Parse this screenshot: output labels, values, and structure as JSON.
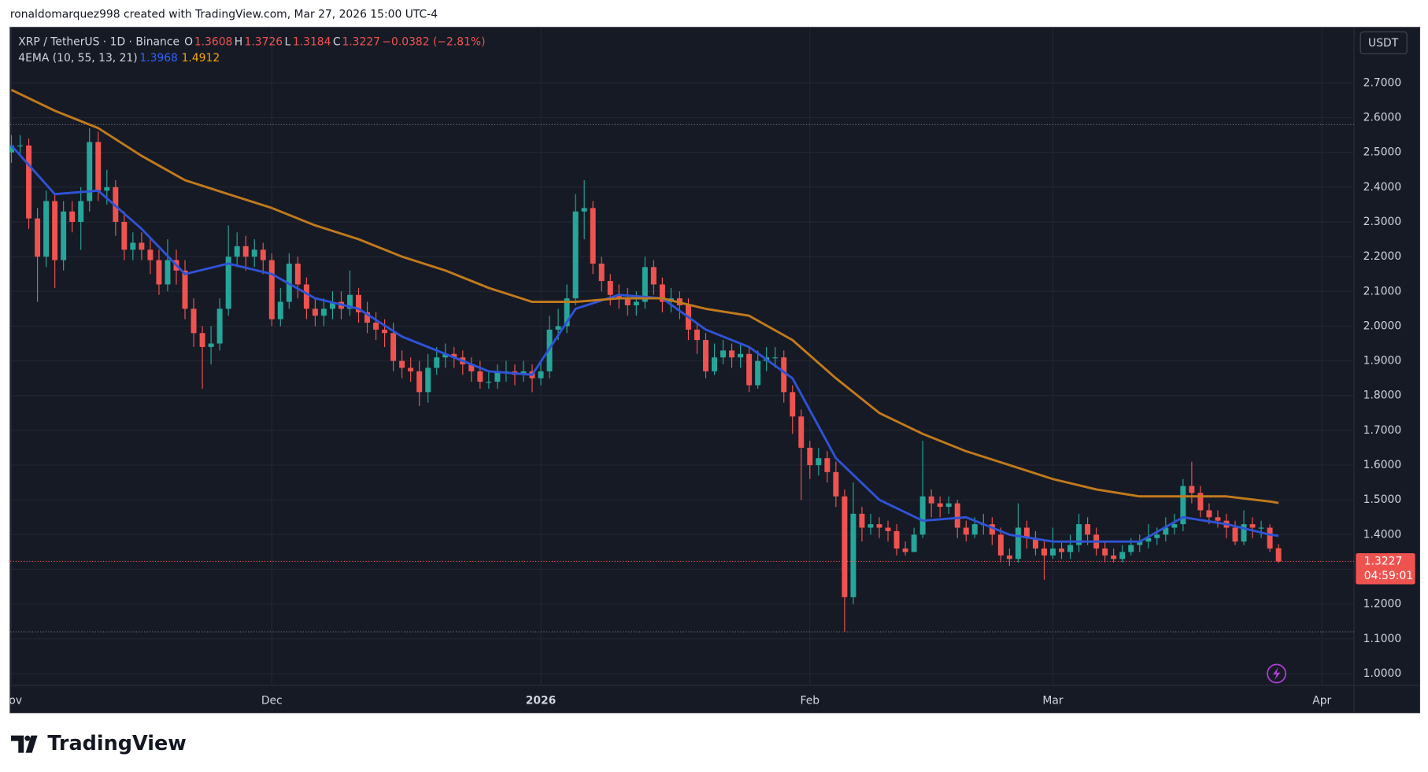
{
  "header": "ronaldomarquez998 created with TradingView.com, Mar 27, 2026 15:00 UTC-4",
  "footer": "TradingView",
  "chart_data": {
    "type": "candlestick",
    "symbol": "XRP / TetherUS · 1D · Binance",
    "ohlc_labels": [
      "O",
      "H",
      "L",
      "C"
    ],
    "change": "−0.0382 (−2.81%)",
    "currency": "USDT",
    "countdown": "04:59:01",
    "up_color": "#26a69a",
    "down_color": "#ef5350",
    "open": [
      2.5,
      2.52,
      2.52,
      2.31,
      2.2,
      2.36,
      2.19,
      2.33,
      2.3,
      2.36,
      2.53,
      2.39,
      2.4,
      2.3,
      2.22,
      2.24,
      2.22,
      2.19,
      2.12,
      2.19,
      2.16,
      2.05,
      1.98,
      1.94,
      1.95,
      2.05,
      2.2,
      2.23,
      2.2,
      2.22,
      2.19,
      2.02,
      2.07,
      2.18,
      2.12,
      2.05,
      2.03,
      2.05,
      2.07,
      2.05,
      2.09,
      2.04,
      2.01,
      1.99,
      1.98,
      1.9,
      1.88,
      1.87,
      1.81,
      1.88,
      1.91,
      1.92,
      1.91,
      1.89,
      1.87,
      1.84,
      1.84,
      1.87,
      1.87,
      1.86,
      1.87,
      1.85,
      1.87,
      1.99,
      2.0,
      2.08,
      2.33,
      2.34,
      2.18,
      2.13,
      2.09,
      2.08,
      2.06,
      2.07,
      2.17,
      2.12,
      2.07,
      2.08,
      2.06,
      1.99,
      1.96,
      1.87,
      1.91,
      1.93,
      1.91,
      1.92,
      1.83,
      1.9,
      1.91,
      1.91,
      1.81,
      1.74,
      1.65,
      1.6,
      1.62,
      1.58,
      1.51,
      1.22,
      1.46,
      1.42,
      1.43,
      1.42,
      1.41,
      1.36,
      1.35,
      1.4,
      1.51,
      1.49,
      1.48,
      1.49,
      1.42,
      1.4,
      1.43,
      1.43,
      1.4,
      1.34,
      1.33,
      1.42,
      1.39,
      1.36,
      1.34,
      1.36,
      1.35,
      1.37,
      1.43,
      1.4,
      1.36,
      1.34,
      1.33,
      1.35,
      1.37,
      1.38,
      1.39,
      1.4,
      1.42,
      1.43,
      1.54,
      1.52,
      1.47,
      1.45,
      1.44,
      1.42,
      1.38,
      1.43,
      1.42,
      1.42,
      1.3608
    ],
    "high": [
      2.55,
      2.55,
      2.54,
      2.34,
      2.39,
      2.38,
      2.36,
      2.36,
      2.4,
      2.57,
      2.56,
      2.45,
      2.42,
      2.33,
      2.27,
      2.27,
      2.25,
      2.22,
      2.25,
      2.22,
      2.19,
      2.08,
      2.0,
      2.0,
      2.08,
      2.29,
      2.27,
      2.26,
      2.25,
      2.24,
      2.21,
      2.11,
      2.21,
      2.2,
      2.14,
      2.08,
      2.08,
      2.1,
      2.1,
      2.16,
      2.11,
      2.07,
      2.04,
      2.02,
      2.01,
      1.93,
      1.91,
      1.9,
      1.92,
      1.94,
      1.95,
      1.94,
      1.93,
      1.91,
      1.9,
      1.87,
      1.89,
      1.9,
      1.89,
      1.9,
      1.89,
      1.9,
      2.03,
      2.05,
      2.12,
      2.38,
      2.42,
      2.36,
      2.2,
      2.15,
      2.12,
      2.11,
      2.1,
      2.2,
      2.19,
      2.14,
      2.11,
      2.1,
      2.08,
      2.01,
      1.98,
      1.95,
      1.96,
      1.95,
      1.95,
      1.94,
      1.93,
      1.94,
      1.94,
      1.93,
      1.83,
      1.76,
      1.67,
      1.65,
      1.64,
      1.61,
      1.53,
      1.55,
      1.48,
      1.46,
      1.45,
      1.44,
      1.43,
      1.38,
      1.42,
      1.67,
      1.53,
      1.51,
      1.51,
      1.5,
      1.44,
      1.45,
      1.46,
      1.45,
      1.42,
      1.36,
      1.49,
      1.44,
      1.41,
      1.38,
      1.42,
      1.38,
      1.4,
      1.46,
      1.45,
      1.42,
      1.38,
      1.36,
      1.37,
      1.39,
      1.4,
      1.43,
      1.42,
      1.45,
      1.46,
      1.56,
      1.61,
      1.54,
      1.49,
      1.47,
      1.46,
      1.44,
      1.47,
      1.45,
      1.44,
      1.43,
      1.3726
    ],
    "low": [
      2.47,
      2.49,
      2.28,
      2.07,
      2.17,
      2.11,
      2.16,
      2.27,
      2.22,
      2.33,
      2.36,
      2.35,
      2.26,
      2.19,
      2.19,
      2.19,
      2.15,
      2.09,
      2.1,
      2.12,
      2.02,
      1.94,
      1.82,
      1.89,
      1.93,
      2.03,
      2.17,
      2.16,
      2.17,
      2.15,
      2.0,
      2.0,
      2.05,
      2.08,
      2.02,
      2.0,
      2.0,
      2.02,
      2.02,
      2.03,
      2.01,
      1.98,
      1.96,
      1.94,
      1.87,
      1.85,
      1.84,
      1.77,
      1.78,
      1.86,
      1.88,
      1.88,
      1.86,
      1.84,
      1.82,
      1.82,
      1.82,
      1.84,
      1.83,
      1.84,
      1.81,
      1.83,
      1.85,
      1.96,
      1.98,
      2.06,
      2.25,
      2.15,
      2.1,
      2.06,
      2.05,
      2.03,
      2.03,
      2.05,
      2.09,
      2.04,
      2.04,
      2.02,
      1.96,
      1.92,
      1.85,
      1.86,
      1.89,
      1.88,
      1.88,
      1.81,
      1.82,
      1.87,
      1.88,
      1.78,
      1.69,
      1.5,
      1.56,
      1.57,
      1.55,
      1.48,
      1.12,
      1.2,
      1.38,
      1.4,
      1.39,
      1.38,
      1.34,
      1.34,
      1.35,
      1.39,
      1.45,
      1.45,
      1.46,
      1.39,
      1.38,
      1.39,
      1.4,
      1.37,
      1.32,
      1.31,
      1.32,
      1.36,
      1.34,
      1.27,
      1.33,
      1.33,
      1.33,
      1.35,
      1.37,
      1.34,
      1.32,
      1.32,
      1.32,
      1.34,
      1.35,
      1.36,
      1.37,
      1.38,
      1.4,
      1.41,
      1.49,
      1.45,
      1.43,
      1.42,
      1.39,
      1.37,
      1.37,
      1.39,
      1.39,
      1.35,
      1.3184
    ],
    "close": [
      2.52,
      2.52,
      2.31,
      2.2,
      2.36,
      2.19,
      2.33,
      2.3,
      2.36,
      2.53,
      2.39,
      2.4,
      2.3,
      2.22,
      2.24,
      2.22,
      2.19,
      2.12,
      2.19,
      2.16,
      2.05,
      1.98,
      1.94,
      1.95,
      2.05,
      2.2,
      2.23,
      2.2,
      2.22,
      2.19,
      2.02,
      2.07,
      2.18,
      2.12,
      2.05,
      2.03,
      2.05,
      2.07,
      2.05,
      2.09,
      2.04,
      2.01,
      1.99,
      1.98,
      1.9,
      1.88,
      1.87,
      1.81,
      1.88,
      1.91,
      1.92,
      1.91,
      1.89,
      1.87,
      1.84,
      1.84,
      1.87,
      1.87,
      1.86,
      1.87,
      1.85,
      1.87,
      1.99,
      2.0,
      2.08,
      2.33,
      2.34,
      2.18,
      2.13,
      2.09,
      2.08,
      2.06,
      2.07,
      2.17,
      2.12,
      2.07,
      2.08,
      2.06,
      1.99,
      1.96,
      1.87,
      1.91,
      1.93,
      1.91,
      1.92,
      1.83,
      1.9,
      1.91,
      1.91,
      1.81,
      1.74,
      1.65,
      1.6,
      1.62,
      1.58,
      1.51,
      1.22,
      1.46,
      1.42,
      1.43,
      1.42,
      1.41,
      1.36,
      1.35,
      1.4,
      1.51,
      1.49,
      1.48,
      1.49,
      1.42,
      1.4,
      1.43,
      1.43,
      1.4,
      1.34,
      1.33,
      1.42,
      1.39,
      1.36,
      1.34,
      1.36,
      1.35,
      1.37,
      1.43,
      1.4,
      1.36,
      1.34,
      1.33,
      1.35,
      1.37,
      1.38,
      1.39,
      1.4,
      1.42,
      1.43,
      1.54,
      1.52,
      1.47,
      1.45,
      1.44,
      1.42,
      1.38,
      1.43,
      1.42,
      1.42,
      1.36,
      1.3227
    ],
    "indicator": {
      "label": "4EMA (10, 55, 13, 21)",
      "series": [
        {
          "color": "#2f53d6",
          "x": [
            0,
            5,
            10,
            15,
            20,
            25,
            30,
            35,
            40,
            45,
            50,
            55,
            60,
            65,
            70,
            75,
            80,
            85,
            90,
            95,
            100,
            105,
            110,
            115,
            120,
            125,
            130,
            135,
            140,
            145,
            146
          ],
          "values": [
            2.52,
            2.38,
            2.39,
            2.28,
            2.15,
            2.18,
            2.15,
            2.08,
            2.05,
            1.97,
            1.92,
            1.87,
            1.86,
            2.05,
            2.09,
            2.08,
            1.99,
            1.94,
            1.85,
            1.62,
            1.5,
            1.44,
            1.45,
            1.4,
            1.38,
            1.38,
            1.38,
            1.45,
            1.43,
            1.4,
            1.3968
          ]
        },
        {
          "color": "#c27a1c",
          "x": [
            0,
            5,
            10,
            15,
            20,
            25,
            30,
            35,
            40,
            45,
            50,
            55,
            60,
            65,
            70,
            75,
            80,
            85,
            90,
            95,
            100,
            105,
            110,
            115,
            120,
            125,
            130,
            135,
            140,
            145,
            146
          ],
          "values": [
            2.68,
            2.62,
            2.57,
            2.49,
            2.42,
            2.38,
            2.34,
            2.29,
            2.25,
            2.2,
            2.16,
            2.11,
            2.07,
            2.07,
            2.08,
            2.08,
            2.05,
            2.03,
            1.96,
            1.85,
            1.75,
            1.69,
            1.64,
            1.6,
            1.56,
            1.53,
            1.51,
            1.51,
            1.51,
            1.495,
            1.4912
          ]
        }
      ]
    },
    "hlines": [
      2.58,
      1.12
    ],
    "xlim": [
      -0.15,
      154.7
    ],
    "xticks": [
      {
        "value": 0,
        "label": "Nov"
      },
      {
        "value": 30,
        "label": "Dec"
      },
      {
        "value": 61,
        "label": "2026"
      },
      {
        "value": 92,
        "label": "Feb"
      },
      {
        "value": 120,
        "label": "Mar"
      },
      {
        "value": 151,
        "label": "Apr"
      }
    ],
    "ylim": [
      0.966,
      2.86
    ],
    "yticks": [
      {
        "value": 1.0,
        "label": "1.0000"
      },
      {
        "value": 1.1,
        "label": "1.1000"
      },
      {
        "value": 1.2,
        "label": "1.2000"
      },
      {
        "value": 1.3,
        "label": "1.3000"
      },
      {
        "value": 1.4,
        "label": "1.4000"
      },
      {
        "value": 1.5,
        "label": "1.5000"
      },
      {
        "value": 1.6,
        "label": "1.6000"
      },
      {
        "value": 1.7,
        "label": "1.7000"
      },
      {
        "value": 1.8,
        "label": "1.8000"
      },
      {
        "value": 1.9,
        "label": "1.9000"
      },
      {
        "value": 2.0,
        "label": "2.0000"
      },
      {
        "value": 2.1,
        "label": "2.1000"
      },
      {
        "value": 2.2,
        "label": "2.2000"
      },
      {
        "value": 2.3,
        "label": "2.3000"
      },
      {
        "value": 2.4,
        "label": "2.4000"
      },
      {
        "value": 2.5,
        "label": "2.5000"
      },
      {
        "value": 2.6,
        "label": "2.6000"
      },
      {
        "value": 2.7,
        "label": "2.7000"
      }
    ],
    "grid": true
  }
}
